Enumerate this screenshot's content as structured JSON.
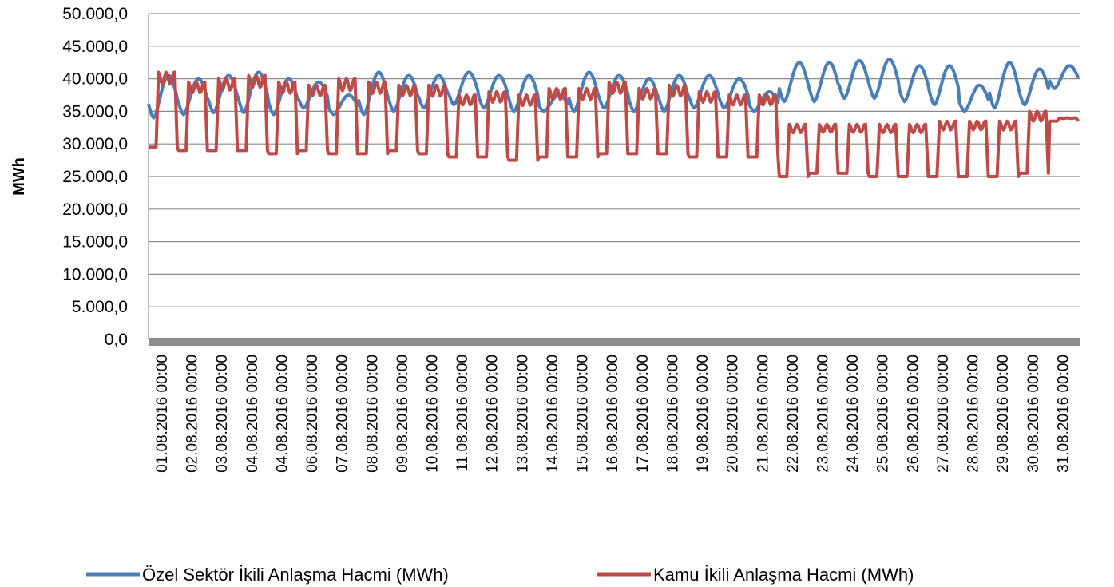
{
  "chart_data": {
    "type": "line",
    "title": "",
    "xlabel": "",
    "ylabel": "MWh",
    "ylim": [
      0,
      50000
    ],
    "yticks": [
      0,
      5000,
      10000,
      15000,
      20000,
      25000,
      30000,
      35000,
      40000,
      45000,
      50000
    ],
    "ytick_labels": [
      "0,0",
      "5.000,0",
      "10.000,0",
      "15.000,0",
      "20.000,0",
      "25.000,0",
      "30.000,0",
      "35.000,0",
      "40.000,0",
      "45.000,0",
      "50.000,0"
    ],
    "x_tick_labels": [
      "01.08.2016 00:00",
      "02.08.2016 00:00",
      "03.08.2016 00:00",
      "04.08.2016 00:00",
      "04.08.2016 00:00",
      "06.08.2016 00:00",
      "07.08.2016 00:00",
      "08.08.2016 00:00",
      "09.08.2016 00:00",
      "10.08.2016 00:00",
      "11.08.2016 00:00",
      "12.08.2016 00:00",
      "13.08.2016 00:00",
      "14.08.2016 00:00",
      "15.08.2016 00:00",
      "16.08.2016 00:00",
      "17.08.2016 00:00",
      "18.08.2016 00:00",
      "19.08.2016 00:00",
      "20.08.2016 00:00",
      "21.08.2016 00:00",
      "22.08.2016 00:00",
      "23.08.2016 00:00",
      "24.08.2016 00:00",
      "25.08.2016 00:00",
      "26.08.2016 00:00",
      "27.08.2016 00:00",
      "28.08.2016 00:00",
      "29.08.2016 00:00",
      "30.08.2016 00:00",
      "31.08.2016 00:00"
    ],
    "grid": true,
    "legend_position": "bottom",
    "series": [
      {
        "name": "Özel Sektör İkili Anlaşma Hacmi (MWh)",
        "color": "#4a7ebb",
        "daily_peak": [
          40500,
          40000,
          40500,
          41000,
          40000,
          39500,
          37500,
          41000,
          40500,
          40500,
          41000,
          40500,
          40500,
          37500,
          41000,
          40500,
          40000,
          40500,
          40500,
          40000,
          38000,
          42500,
          42500,
          42800,
          43000,
          42000,
          42000,
          39000,
          42500,
          41500,
          42000
        ],
        "daily_trough": [
          34000,
          34500,
          34800,
          34800,
          34500,
          35500,
          34500,
          34500,
          35000,
          35500,
          36000,
          35500,
          35000,
          35000,
          35000,
          35500,
          35000,
          35000,
          35500,
          35500,
          35000,
          36500,
          36500,
          37000,
          37000,
          36500,
          36000,
          35000,
          35500,
          36000,
          38500
        ]
      },
      {
        "name": "Kamu İkili Anlaşma Hacmi (MWh)",
        "color": "#be4b48",
        "daily_peak": [
          41000,
          39500,
          40000,
          40500,
          39500,
          39000,
          40000,
          39500,
          39000,
          39000,
          37500,
          38000,
          37500,
          38500,
          38500,
          39500,
          38500,
          39000,
          38000,
          37500,
          37500,
          33000,
          33000,
          33000,
          33000,
          33000,
          33500,
          33500,
          33500,
          35000,
          34000
        ],
        "daily_trough": [
          29500,
          29000,
          29000,
          29000,
          28500,
          29000,
          28500,
          28500,
          29000,
          28500,
          28000,
          28000,
          27500,
          28000,
          28000,
          28500,
          28500,
          28500,
          28000,
          28000,
          28000,
          25000,
          25500,
          25500,
          25000,
          25000,
          25000,
          25000,
          25000,
          25500,
          33500
        ]
      }
    ]
  }
}
